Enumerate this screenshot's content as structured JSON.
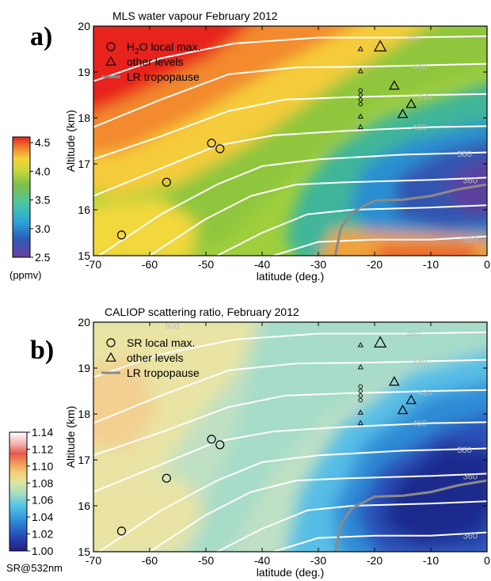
{
  "panel_a": {
    "letter": "a)",
    "title": "MLS water vapour February 2012",
    "xlabel": "latitude (deg.)",
    "ylabel": "Altitude (km)",
    "xticks": [
      "-70",
      "-60",
      "-50",
      "-40",
      "-30",
      "-20",
      "-10",
      "0"
    ],
    "yticks": [
      "15",
      "16",
      "17",
      "18",
      "19",
      "20"
    ],
    "legend": [
      {
        "marker": "circle",
        "label_main": "H",
        "label_sub": "2",
        "label_rest": "O local max."
      },
      {
        "marker": "triangle",
        "label_main": "other levels",
        "label_sub": "",
        "label_rest": ""
      },
      {
        "marker": "line",
        "label_main": "LR tropopause",
        "label_sub": "",
        "label_rest": ""
      }
    ],
    "colorbar": {
      "ticks": [
        "4.5",
        "4.0",
        "3.5",
        "3.0",
        "2.5"
      ],
      "unit": "(ppmv)",
      "range": [
        2.5,
        4.6
      ]
    }
  },
  "panel_b": {
    "letter": "b)",
    "title": "CALIOP scattering ratio, February 2012",
    "xlabel": "latitude (deg.)",
    "ylabel": "Altitude (km)",
    "xticks": [
      "-70",
      "-60",
      "-50",
      "-40",
      "-30",
      "-20",
      "-10",
      "0"
    ],
    "yticks": [
      "15",
      "16",
      "17",
      "18",
      "19",
      "20"
    ],
    "legend": [
      {
        "marker": "circle",
        "label_main": "SR local max.",
        "label_sub": "",
        "label_rest": ""
      },
      {
        "marker": "triangle",
        "label_main": "other levels",
        "label_sub": "",
        "label_rest": ""
      },
      {
        "marker": "line",
        "label_main": "LR tropopause",
        "label_sub": "",
        "label_rest": ""
      }
    ],
    "colorbar": {
      "ticks": [
        "1.14",
        "1.12",
        "1.10",
        "1.08",
        "1.06",
        "1.04",
        "1.02",
        "1.00"
      ],
      "unit": "SR@532nm",
      "range": [
        1.0,
        1.14
      ]
    }
  },
  "chart_data": [
    {
      "type": "heatmap",
      "title": "MLS water vapour February 2012",
      "xlabel": "latitude (deg.)",
      "ylabel": "Altitude (km)",
      "xlim": [
        -70,
        0
      ],
      "ylim": [
        15,
        20
      ],
      "colorbar_label": "(ppmv)",
      "colorbar_range": [
        2.5,
        4.6
      ],
      "local_max_points": [
        [
          -65,
          15.45
        ],
        [
          -57,
          16.6
        ],
        [
          -49,
          17.45
        ],
        [
          -47.5,
          17.33
        ]
      ],
      "other_levels_large": [
        [
          -19,
          19.55
        ],
        [
          -16.5,
          18.7
        ],
        [
          -13.5,
          18.3
        ],
        [
          -15,
          18.08
        ]
      ],
      "other_levels_small": [
        [
          -22.5,
          19.5
        ],
        [
          -22.5,
          19.02
        ],
        [
          -22.5,
          18.03
        ],
        [
          -22.5,
          17.8
        ]
      ],
      "stacked_small_circles": [
        [
          -22.5,
          18.6
        ],
        [
          -22.5,
          18.5
        ],
        [
          -22.5,
          18.4
        ],
        [
          -22.5,
          18.3
        ]
      ],
      "isentrope_labels": [
        "460",
        "440",
        "420",
        "400",
        "380",
        "360"
      ],
      "tropopause": [
        [
          -27,
          15.0
        ],
        [
          -26,
          15.6
        ],
        [
          -24,
          15.95
        ],
        [
          -20,
          16.2
        ],
        [
          -15,
          16.22
        ],
        [
          -10,
          16.3
        ],
        [
          -5,
          16.45
        ],
        [
          0,
          16.55
        ]
      ]
    },
    {
      "type": "heatmap",
      "title": "CALIOP scattering ratio, February 2012",
      "xlabel": "latitude (deg.)",
      "ylabel": "Altitude (km)",
      "xlim": [
        -70,
        0
      ],
      "ylim": [
        15,
        20
      ],
      "colorbar_label": "SR@532nm",
      "colorbar_range": [
        1.0,
        1.14
      ],
      "local_max_points": [
        [
          -65,
          15.45
        ],
        [
          -57,
          16.6
        ],
        [
          -49,
          17.45
        ],
        [
          -47.5,
          17.33
        ]
      ],
      "other_levels_large": [
        [
          -19,
          19.55
        ],
        [
          -16.5,
          18.7
        ],
        [
          -13.5,
          18.3
        ],
        [
          -15,
          18.08
        ]
      ],
      "other_levels_small": [
        [
          -22.5,
          19.5
        ],
        [
          -22.5,
          19.02
        ],
        [
          -22.5,
          18.03
        ],
        [
          -22.5,
          17.8
        ]
      ],
      "stacked_small_circles": [
        [
          -22.5,
          18.6
        ],
        [
          -22.5,
          18.5
        ],
        [
          -22.5,
          18.4
        ],
        [
          -22.5,
          18.3
        ]
      ],
      "isentrope_labels": [
        "500",
        "460",
        "440",
        "420",
        "400",
        "380",
        "360"
      ],
      "tropopause": [
        [
          -27,
          15.0
        ],
        [
          -26,
          15.6
        ],
        [
          -24,
          15.95
        ],
        [
          -20,
          16.2
        ],
        [
          -15,
          16.22
        ],
        [
          -10,
          16.3
        ],
        [
          -5,
          16.45
        ],
        [
          0,
          16.55
        ]
      ]
    }
  ]
}
